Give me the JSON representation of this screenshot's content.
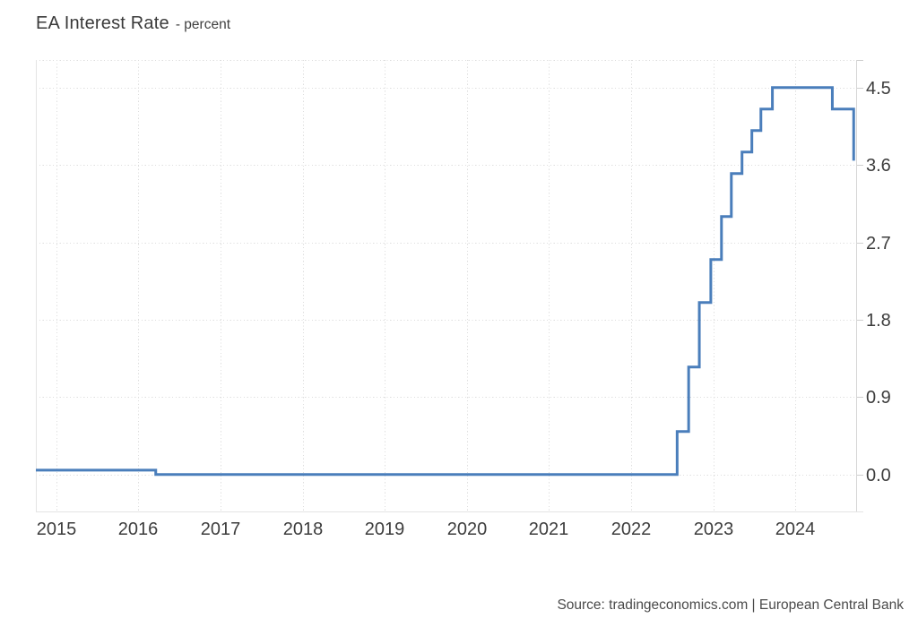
{
  "header": {
    "title": "EA Interest Rate",
    "subtitle": "- percent"
  },
  "footer": {
    "source": "Source: tradingeconomics.com | European Central Bank"
  },
  "colors": {
    "line": "#4a7ebb",
    "grid": "#dedede",
    "plot_border": "#e4e4e4",
    "right_axis": "#d6d6d6",
    "tick": "#cfcfcf",
    "axis_text": "#3d3d3d",
    "background": "#ffffff"
  },
  "chart_data": {
    "type": "line",
    "step": "after",
    "title": "EA Interest Rate",
    "ylabel_unit": "percent",
    "grid": "dotted",
    "legend": "none",
    "xlim": [
      2014.75,
      2024.74
    ],
    "ylim": [
      -0.43,
      4.82
    ],
    "x_axis": {
      "ticks": [
        2015,
        2016,
        2017,
        2018,
        2019,
        2020,
        2021,
        2022,
        2023,
        2024
      ],
      "labels": [
        "2015",
        "2016",
        "2017",
        "2018",
        "2019",
        "2020",
        "2021",
        "2022",
        "2023",
        "2024"
      ]
    },
    "y_axis": {
      "side": "right",
      "ticks": [
        4.5,
        3.6,
        2.7,
        1.8,
        0.9,
        0.0
      ],
      "labels": [
        "4.5",
        "3.6",
        "2.7",
        "1.8",
        "0.9",
        "0.0"
      ]
    },
    "series": [
      {
        "name": "EA Interest Rate",
        "color": "#4a7ebb",
        "points": [
          [
            2014.75,
            0.05
          ],
          [
            2016.21,
            0.0
          ],
          [
            2022.56,
            0.5
          ],
          [
            2022.7,
            1.25
          ],
          [
            2022.83,
            2.0
          ],
          [
            2022.97,
            2.5
          ],
          [
            2023.1,
            3.0
          ],
          [
            2023.22,
            3.5
          ],
          [
            2023.35,
            3.75
          ],
          [
            2023.47,
            4.0
          ],
          [
            2023.58,
            4.25
          ],
          [
            2023.72,
            4.5
          ],
          [
            2024.45,
            4.25
          ],
          [
            2024.71,
            3.65
          ]
        ]
      }
    ]
  }
}
